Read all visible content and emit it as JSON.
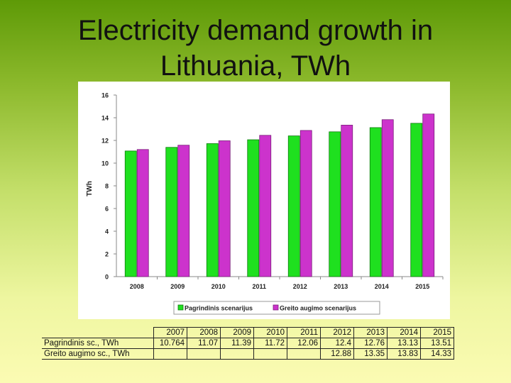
{
  "title": {
    "line1": "Electricity demand growth in",
    "line2": "Lithuania, TWh"
  },
  "colors": {
    "series1": "#1fe01f",
    "series2": "#cc33cc",
    "series2_stroke": "#7a1f7a",
    "series1_stroke": "#0e7a0e"
  },
  "chart_data": {
    "type": "bar",
    "title": "Electricity demand growth in Lithuania, TWh",
    "xlabel": "",
    "ylabel": "TWh",
    "ylim": [
      0,
      16
    ],
    "yticks": [
      "0",
      "2",
      "4",
      "6",
      "8",
      "10",
      "12",
      "14",
      "16"
    ],
    "categories": [
      "2008",
      "2009",
      "2010",
      "2011",
      "2012",
      "2013",
      "2014",
      "2015"
    ],
    "series": [
      {
        "name": "Pagrindinis scenarijus",
        "values": [
          11.07,
          11.39,
          11.72,
          12.06,
          12.4,
          12.76,
          13.13,
          13.51
        ]
      },
      {
        "name": "Greito augimo scenarijus",
        "values": [
          11.2,
          11.58,
          11.97,
          12.45,
          12.88,
          13.35,
          13.83,
          14.33
        ]
      }
    ],
    "legend": [
      "Pagrindinis scenarijus",
      "Greito augimo scenarijus"
    ],
    "legend_position": "bottom"
  },
  "table": {
    "years": [
      "2007",
      "2008",
      "2009",
      "2010",
      "2011",
      "2012",
      "2013",
      "2014",
      "2015"
    ],
    "rows": [
      {
        "label": "Pagrindinis sc., TWh",
        "values": [
          "10.764",
          "11.07",
          "11.39",
          "11.72",
          "12.06",
          "12.4",
          "12.76",
          "13.13",
          "13.51"
        ]
      },
      {
        "label": "Greito augimo sc., TWh",
        "values": [
          "",
          "",
          "",
          "",
          "",
          "12.88",
          "13.35",
          "13.83",
          "14.33"
        ]
      }
    ]
  }
}
